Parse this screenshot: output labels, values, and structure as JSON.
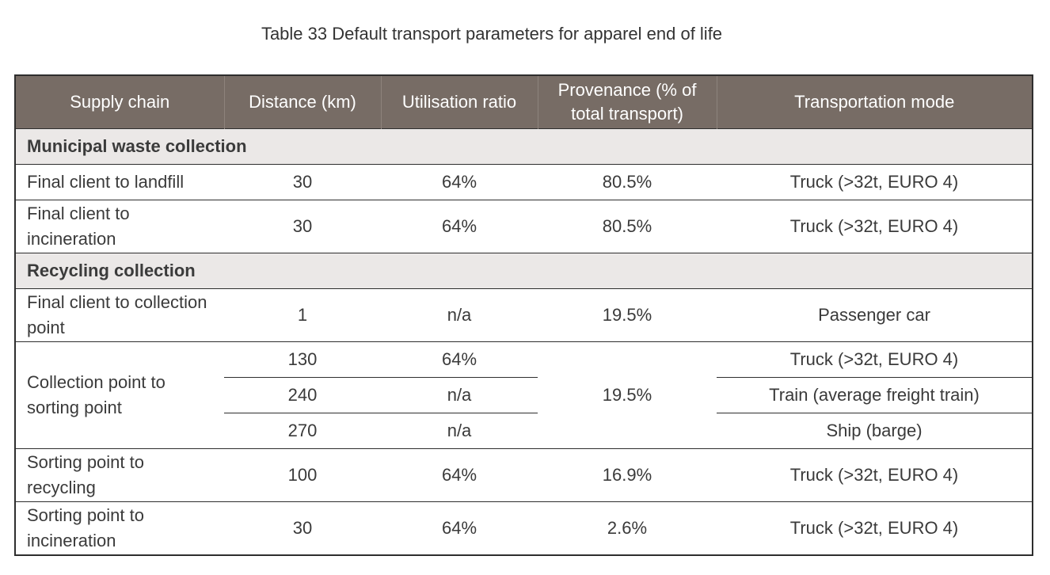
{
  "caption": "Table 33 Default transport parameters for apparel end of life",
  "header": {
    "supply_chain": "Supply chain",
    "distance": "Distance (km)",
    "utilisation": "Utilisation ratio",
    "provenance": "Provenance (% of total transport)",
    "mode": "Transportation mode"
  },
  "sections": {
    "municipal": "Municipal waste collection",
    "recycling": "Recycling collection"
  },
  "rows": {
    "landfill": {
      "chain": "Final client to landfill",
      "distance": "30",
      "utilisation": "64%",
      "provenance": "80.5%",
      "mode": "Truck (>32t, EURO 4)"
    },
    "incineration": {
      "chain": "Final client to incineration",
      "distance": "30",
      "utilisation": "64%",
      "provenance": "80.5%",
      "mode": "Truck (>32t, EURO 4)"
    },
    "collection_point": {
      "chain": "Final client to collection point",
      "distance": "1",
      "utilisation": "n/a",
      "provenance": "19.5%",
      "mode": "Passenger car"
    },
    "sorting": {
      "chain": "Collection point to sorting point",
      "provenance": "19.5%",
      "sub": [
        {
          "distance": "130",
          "utilisation": "64%",
          "mode": "Truck (>32t, EURO 4)"
        },
        {
          "distance": "240",
          "utilisation": "n/a",
          "mode": "Train (average freight train)"
        },
        {
          "distance": "270",
          "utilisation": "n/a",
          "mode": "Ship (barge)"
        }
      ]
    },
    "recycling": {
      "chain": "Sorting point to recycling",
      "distance": "100",
      "utilisation": "64%",
      "provenance": "16.9%",
      "mode": "Truck (>32t, EURO 4)"
    },
    "sort_incineration": {
      "chain": "Sorting point to incineration",
      "distance": "30",
      "utilisation": "64%",
      "provenance": "2.6%",
      "mode": "Truck (>32t, EURO 4)"
    }
  }
}
